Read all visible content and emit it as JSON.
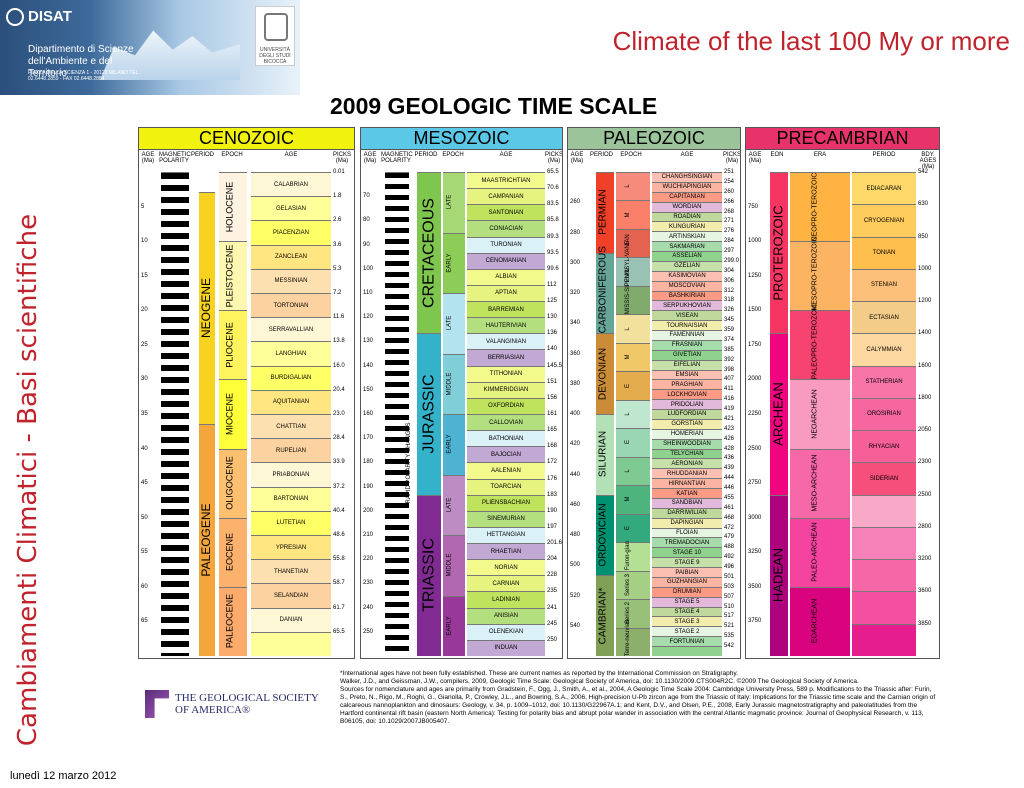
{
  "header": {
    "logo_word": "DISAT",
    "dept": "Dipartimento di Scienze dell'Ambiente e del Territorio",
    "address": "PIAZZA DELLA SCIENZA 1 - 20126 MILANO TEL. 02.6448.2859 - FAX 02.6448.2884",
    "university": "UNIVERSITÀ DEGLI STUDI BICOCCA"
  },
  "slide_title": "Climate of the last 100 My or more",
  "side_text": "Cambiamenti Climatici  -  Basi scientifiche",
  "date": "lunedì 12 marzo 2012",
  "chart_title": "2009 GEOLOGIC TIME SCALE",
  "cenozoic": {
    "name": "CENOZOIC",
    "headers": [
      "AGE (Ma)",
      "MAGNETIC POLARITY",
      "PERIOD",
      "EPOCH",
      "AGE",
      "PICKS (Ma)"
    ],
    "period_labels": [
      "NEOGENE",
      "PALEOGENE",
      "TERTIARY",
      "QUATER-NARY"
    ],
    "epochs": [
      "HOLOCENE",
      "PLEISTOCENE",
      "PLIOCENE",
      "MIOCENE",
      "OLIGOCENE",
      "EOCENE",
      "PALEOCENE"
    ],
    "ages": [
      [
        "CALABRIAN",
        "0.01"
      ],
      [
        "GELASIAN",
        "1.8"
      ],
      [
        "PIACENZIAN",
        "2.6"
      ],
      [
        "ZANCLEAN",
        "3.6"
      ],
      [
        "MESSINIAN",
        "5.3"
      ],
      [
        "TORTONIAN",
        "7.2"
      ],
      [
        "SERRAVALLIAN",
        "11.6"
      ],
      [
        "LANGHIAN",
        "13.8"
      ],
      [
        "BURDIGALIAN",
        "16.0"
      ],
      [
        "AQUITANIAN",
        "20.4"
      ],
      [
        "CHATTIAN",
        "23.0"
      ],
      [
        "RUPELIAN",
        "28.4"
      ],
      [
        "PRIABONIAN",
        "33.9"
      ],
      [
        "BARTONIAN",
        "37.2"
      ],
      [
        "LUTETIAN",
        "40.4"
      ],
      [
        "YPRESIAN",
        "48.6"
      ],
      [
        "THANETIAN",
        "55.8"
      ],
      [
        "SELANDIAN",
        "58.7"
      ],
      [
        "DANIAN",
        "61.7"
      ],
      [
        "",
        "65.5"
      ]
    ],
    "age_ticks": [
      "5",
      "10",
      "15",
      "20",
      "25",
      "30",
      "35",
      "40",
      "45",
      "50",
      "55",
      "60",
      "65"
    ]
  },
  "mesozoic": {
    "name": "MESOZOIC",
    "headers": [
      "AGE (Ma)",
      "MAGNETIC POLARITY",
      "PERIOD",
      "EPOCH",
      "AGE",
      "PICKS (Ma)"
    ],
    "period_labels": [
      "CRETACEOUS",
      "JURASSIC",
      "TRIASSIC"
    ],
    "epochs": [
      "LATE",
      "EARLY",
      "LATE",
      "MIDDLE",
      "EARLY",
      "LATE",
      "MIDDLE",
      "EARLY"
    ],
    "ages": [
      [
        "MAASTRICHTIAN",
        "65.5"
      ],
      [
        "CAMPANIAN",
        "70.6"
      ],
      [
        "SANTONIAN",
        "83.5"
      ],
      [
        "CONIACIAN",
        "85.8"
      ],
      [
        "TURONIAN",
        "89.3"
      ],
      [
        "CENOMANIAN",
        "93.5"
      ],
      [
        "ALBIAN",
        "99.6"
      ],
      [
        "APTIAN",
        "112"
      ],
      [
        "BARREMIAN",
        "125"
      ],
      [
        "HAUTERIVIAN",
        "130"
      ],
      [
        "VALANGINIAN",
        "136"
      ],
      [
        "BERRIASIAN",
        "140"
      ],
      [
        "TITHONIAN",
        "145.5"
      ],
      [
        "KIMMERIDGIAN",
        "151"
      ],
      [
        "OXFORDIAN",
        "156"
      ],
      [
        "CALLOVIAN",
        "161"
      ],
      [
        "BATHONIAN",
        "165"
      ],
      [
        "BAJOCIAN",
        "168"
      ],
      [
        "AALENIAN",
        "172"
      ],
      [
        "TOARCIAN",
        "176"
      ],
      [
        "PLIENSBACHIAN",
        "183"
      ],
      [
        "SINEMURIAN",
        "190"
      ],
      [
        "HETTANGIAN",
        "197"
      ],
      [
        "RHAETIAN",
        "201.6"
      ],
      [
        "NORIAN",
        "204"
      ],
      [
        "CARNIAN",
        "228"
      ],
      [
        "LADINIAN",
        "235"
      ],
      [
        "ANISIAN",
        "241"
      ],
      [
        "OLENEKIAN",
        "245"
      ],
      [
        "INDUAN",
        "250"
      ]
    ],
    "age_ticks": [
      "70",
      "80",
      "90",
      "100",
      "110",
      "120",
      "130",
      "140",
      "150",
      "160",
      "170",
      "180",
      "190",
      "200",
      "210",
      "220",
      "230",
      "240",
      "250"
    ],
    "polarity_note": "RAPID POLARITY CHANGES"
  },
  "paleozoic": {
    "name": "PALEOZOIC",
    "headers": [
      "AGE (Ma)",
      "PERIOD",
      "EPOCH",
      "AGE",
      "PICKS (Ma)"
    ],
    "period_labels": [
      "PERMIAN",
      "CARBONIFEROUS",
      "DEVONIAN",
      "SILURIAN",
      "ORDOVICIAN",
      "CAMBRIAN*"
    ],
    "epochs": [
      "L",
      "M",
      "E",
      "PENNSYL-VANIAN",
      "MISSIS-SIPPIAN",
      "L",
      "M",
      "E",
      "L",
      "E",
      "L",
      "M",
      "E",
      "Furon-gian",
      "Series 3",
      "Series 2",
      "Terre-neuvian"
    ],
    "ages": [
      [
        "CHANGHSINGIAN",
        "251"
      ],
      [
        "WUCHIAPINGIAN",
        "254"
      ],
      [
        "CAPITANIAN",
        "260"
      ],
      [
        "WORDIAN",
        "266"
      ],
      [
        "ROADIAN",
        "268"
      ],
      [
        "KUNGURIAN",
        "271"
      ],
      [
        "ARTINSKIAN",
        "276"
      ],
      [
        "SAKMARIAN",
        "284"
      ],
      [
        "ASSELIAN",
        "297"
      ],
      [
        "GZELIAN",
        "299.0"
      ],
      [
        "KASIMOVIAN",
        "304"
      ],
      [
        "MOSCOVIAN",
        "306"
      ],
      [
        "BASHKIRIAN",
        "312"
      ],
      [
        "SERPUKHOVIAN",
        "318"
      ],
      [
        "VISEAN",
        "326"
      ],
      [
        "TOURNAISIAN",
        "345"
      ],
      [
        "FAMENNIAN",
        "359"
      ],
      [
        "FRASNIAN",
        "374"
      ],
      [
        "GIVETIAN",
        "385"
      ],
      [
        "EIFELIAN",
        "392"
      ],
      [
        "EMSIAN",
        "398"
      ],
      [
        "PRAGHIAN",
        "407"
      ],
      [
        "LOCKHOVIAN",
        "411"
      ],
      [
        "PRIDOLIAN",
        "416"
      ],
      [
        "LUDFORDIAN",
        "419"
      ],
      [
        "GORSTIAN",
        "421"
      ],
      [
        "HOMERIAN",
        "423"
      ],
      [
        "SHEINWOODIAN",
        "426"
      ],
      [
        "TELYCHIAN",
        "428"
      ],
      [
        "AERONIAN",
        "436"
      ],
      [
        "RHUDDANIAN",
        "439"
      ],
      [
        "HIRNANTIAN",
        "444"
      ],
      [
        "KATIAN",
        "446"
      ],
      [
        "SANDBIAN",
        "455"
      ],
      [
        "DARRIWILIAN",
        "461"
      ],
      [
        "DAPINGIAN",
        "468"
      ],
      [
        "FLOIAN",
        "472"
      ],
      [
        "TREMADOCIAN",
        "479"
      ],
      [
        "STAGE 10",
        "488"
      ],
      [
        "STAGE 9",
        "492"
      ],
      [
        "PAIBIAN",
        "496"
      ],
      [
        "GUZHANGIAN",
        "501"
      ],
      [
        "DRUMIAN",
        "503"
      ],
      [
        "STAGE 5",
        "507"
      ],
      [
        "STAGE 4",
        "510"
      ],
      [
        "STAGE 3",
        "517"
      ],
      [
        "STAGE 2",
        "521"
      ],
      [
        "FORTUNIAN",
        "535"
      ],
      [
        "",
        "542"
      ]
    ],
    "age_ticks": [
      "260",
      "280",
      "300",
      "320",
      "340",
      "360",
      "380",
      "400",
      "420",
      "440",
      "460",
      "480",
      "500",
      "520",
      "540"
    ]
  },
  "precambrian": {
    "name": "PRECAMBRIAN",
    "headers": [
      "AGE (Ma)",
      "EON",
      "ERA",
      "PERIOD",
      "BDY. AGES (Ma)"
    ],
    "eons": [
      "PROTEROZOIC",
      "ARCHEAN",
      "HADEAN"
    ],
    "eras": [
      "NEOPRO-TEROZOIC",
      "MESOPRO-TEROZOIC",
      "PALEOPRO-TEROZOIC",
      "NEOARCHEAN",
      "MESO-ARCHEAN",
      "PALEO-ARCHEAN",
      "EOARCHEAN"
    ],
    "periods": [
      [
        "EDIACARAN",
        "542"
      ],
      [
        "CRYOGENIAN",
        "630"
      ],
      [
        "TONIAN",
        "850"
      ],
      [
        "STENIAN",
        "1000"
      ],
      [
        "ECTASIAN",
        "1200"
      ],
      [
        "CALYMMIAN",
        "1400"
      ],
      [
        "STATHERIAN",
        "1600"
      ],
      [
        "OROSIRIAN",
        "1800"
      ],
      [
        "RHYACIAN",
        "2050"
      ],
      [
        "SIDERIAN",
        "2300"
      ],
      [
        "",
        "2500"
      ],
      [
        "",
        "2800"
      ],
      [
        "",
        "3200"
      ],
      [
        "",
        "3600"
      ],
      [
        "",
        "3850"
      ]
    ],
    "age_ticks": [
      "750",
      "1000",
      "1250",
      "1500",
      "1750",
      "2000",
      "2250",
      "2500",
      "2750",
      "3000",
      "3250",
      "3500",
      "3750"
    ]
  },
  "gsa": {
    "line1": "THE GEOLOGICAL SOCIETY",
    "line2": "OF AMERICA®"
  },
  "notes": {
    "n1": "*International ages have not been fully established. These are current names as reported by the International Commission on Stratigraphy.",
    "n2": "Walker, J.D., and Geissman, J.W., compilers, 2009, Geologic Time Scale: Geological Society of America, doi: 10.1130/2009.CTS004R2C. ©2009 The Geological Society of America.",
    "n3": "Sources for nomenclature and ages are primarily from Gradstein, F., Ogg, J., Smith, A., et al., 2004, A Geologic Time Scale 2004: Cambridge University Press, 589 p. Modifications to the Triassic after: Furin, S., Preto, N., Rigo, M., Roghi, G., Gianolla, P., Crowley, J.L., and Bowring, S.A., 2006, High-precision U-Pb zircon age from the Triassic of Italy: Implications for the Triassic time scale and the Carnian origin of calcareous nannoplankton and dinosaurs: Geology, v. 34, p. 1009–1012, doi: 10.1130/G22967A.1; and Kent, D.V., and Olsen, P.E., 2008, Early Jurassic magnetostratigraphy and paleolatitudes from the Hartford continental rift basin (eastern North America): Testing for polarity bias and abrupt polar wander in association with the central Atlantic magmatic province: Journal of Geophysical Research, v. 113, B06105, doi: 10.1029/2007JB005407."
  }
}
